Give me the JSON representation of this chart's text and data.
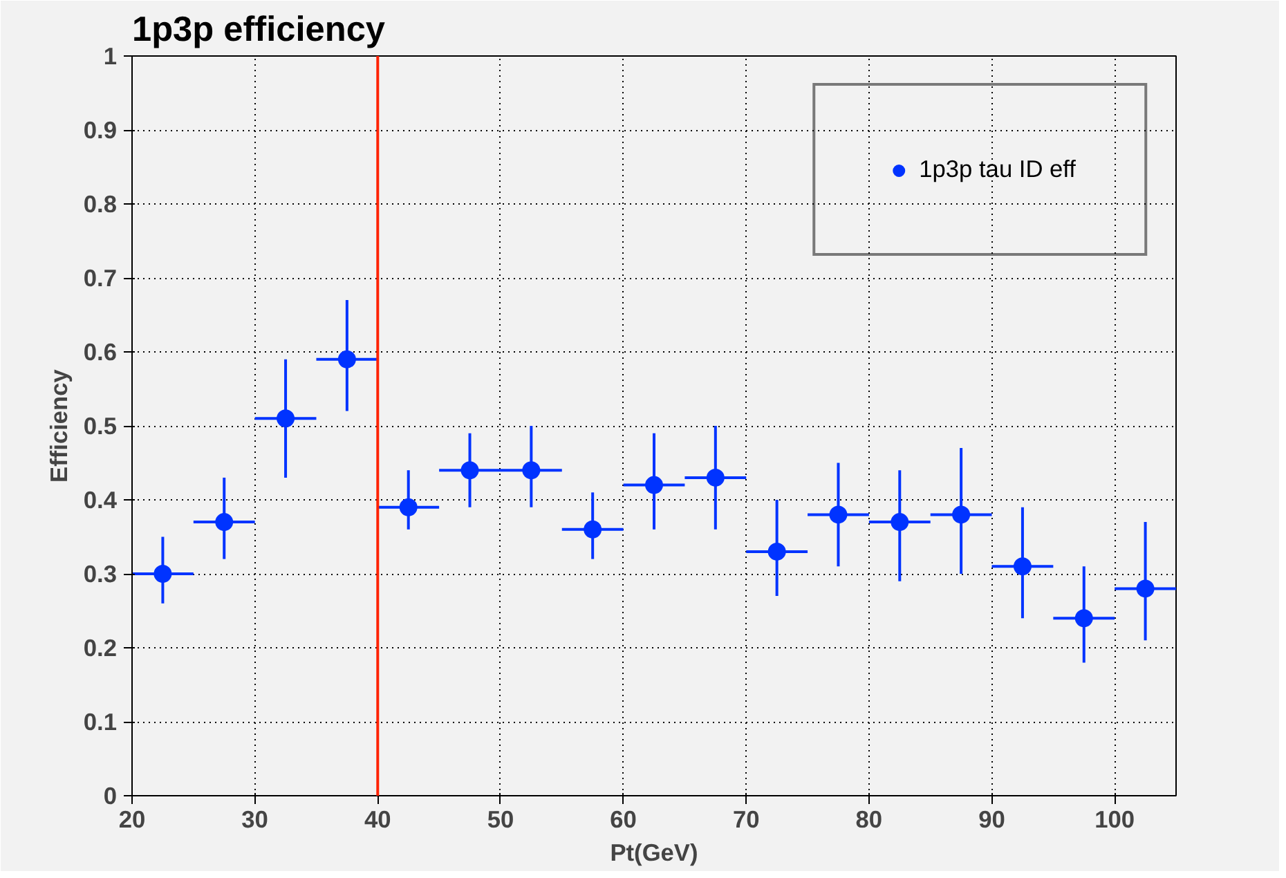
{
  "chart_data": {
    "type": "scatter",
    "title": "1p3p efficiency",
    "xlabel": "Pt(GeV)",
    "ylabel": "Efficiency",
    "x": [
      22.5,
      27.5,
      32.5,
      37.5,
      42.5,
      47.5,
      52.5,
      57.5,
      62.5,
      67.5,
      72.5,
      77.5,
      82.5,
      87.5,
      92.5,
      97.5,
      102.5
    ],
    "series": [
      {
        "name": "1p3p tau ID eff",
        "color": "#0033ff",
        "values": [
          0.3,
          0.37,
          0.51,
          0.59,
          0.39,
          0.44,
          0.44,
          0.36,
          0.42,
          0.43,
          0.33,
          0.38,
          0.37,
          0.38,
          0.31,
          0.24,
          0.28
        ],
        "errors": [
          [
            0.26,
            0.35
          ],
          [
            0.32,
            0.43
          ],
          [
            0.43,
            0.59
          ],
          [
            0.52,
            0.67
          ],
          [
            0.36,
            0.44
          ],
          [
            0.39,
            0.49
          ],
          [
            0.39,
            0.5
          ],
          [
            0.32,
            0.41
          ],
          [
            0.36,
            0.49
          ],
          [
            0.36,
            0.5
          ],
          [
            0.27,
            0.4
          ],
          [
            0.31,
            0.45
          ],
          [
            0.29,
            0.44
          ],
          [
            0.3,
            0.47
          ],
          [
            0.24,
            0.39
          ],
          [
            0.18,
            0.31
          ],
          [
            0.21,
            0.37
          ]
        ],
        "xerrors": [
          2.5,
          2.5,
          2.5,
          2.5,
          2.5,
          2.5,
          2.5,
          2.5,
          2.5,
          2.5,
          2.5,
          2.5,
          2.5,
          2.5,
          2.5,
          2.5,
          2.5
        ]
      }
    ],
    "xlim": [
      20,
      105
    ],
    "ylim": [
      0,
      1
    ],
    "xticks": [
      20,
      30,
      40,
      50,
      60,
      70,
      80,
      90,
      100
    ],
    "yticks": [
      0,
      0.1,
      0.2,
      0.3,
      0.4,
      0.5,
      0.6,
      0.7,
      0.8,
      0.9,
      1
    ],
    "ref_lines": [
      {
        "axis": "x",
        "value": 40,
        "color": "#ff2200"
      }
    ],
    "grid": true,
    "legend": "top right",
    "marker": "circle"
  }
}
